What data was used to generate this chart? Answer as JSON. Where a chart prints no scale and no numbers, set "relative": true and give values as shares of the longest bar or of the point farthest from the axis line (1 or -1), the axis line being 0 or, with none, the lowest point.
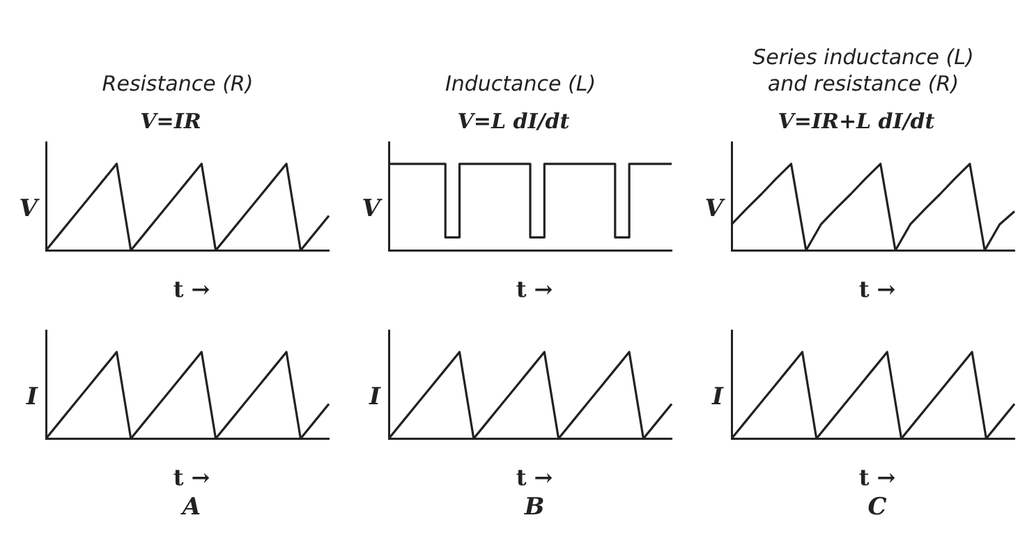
{
  "chart_data": [
    {
      "type": "line",
      "relative": true,
      "title": "Resistance (R)",
      "subtitle": "V=IR",
      "xlabel": "t →",
      "ylabel": "V",
      "color": "#222222",
      "categories": [
        null,
        null,
        null,
        null,
        null,
        null,
        null,
        null,
        null,
        null,
        null,
        null,
        null,
        null,
        null,
        null,
        null,
        null,
        null,
        null,
        null
      ],
      "values": [
        0,
        0.2,
        0.4,
        0.6,
        0.8,
        1,
        0,
        0.2,
        0.4,
        0.6,
        0.8,
        1,
        0,
        0.2,
        0.4,
        0.6,
        0.8,
        1,
        0,
        0.2,
        0.4
      ]
    },
    {
      "type": "step",
      "relative": true,
      "title": "Inductance (L)",
      "subtitle": "V=L dI/dt",
      "xlabel": "t →",
      "ylabel": "V",
      "color": "#222222",
      "categories": [
        null,
        null,
        null,
        null,
        null,
        null,
        null,
        null,
        null,
        null,
        null,
        null,
        null,
        null,
        null,
        null,
        null,
        null,
        null,
        null,
        null
      ],
      "values": [
        1,
        1,
        1,
        1,
        1,
        0.15,
        1,
        1,
        1,
        1,
        1,
        0.15,
        1,
        1,
        1,
        1,
        1,
        0.15,
        1,
        1,
        1
      ]
    },
    {
      "type": "line",
      "relative": true,
      "title": "Series inductance (L) and resistance (R)",
      "subtitle": "V=IR+L dI/dt",
      "xlabel": "t →",
      "ylabel": "V",
      "color": "#222222",
      "categories": [
        null,
        null,
        null,
        null,
        null,
        null,
        null,
        null,
        null,
        null,
        null,
        null,
        null,
        null,
        null,
        null,
        null,
        null,
        null,
        null
      ],
      "values": [
        0.3,
        0.48,
        0.65,
        0.83,
        1,
        0,
        0.3,
        0.48,
        0.65,
        0.83,
        1,
        0,
        0.3,
        0.48,
        0.65,
        0.83,
        1,
        0,
        0.3,
        0.45
      ]
    },
    {
      "type": "line",
      "relative": true,
      "xlabel": "t →",
      "ylabel": "I",
      "annotations": [
        "A"
      ],
      "color": "#222222",
      "categories": [
        null,
        null,
        null,
        null,
        null,
        null,
        null,
        null,
        null,
        null,
        null,
        null,
        null,
        null,
        null,
        null,
        null,
        null,
        null,
        null,
        null
      ],
      "values": [
        0,
        0.2,
        0.4,
        0.6,
        0.8,
        1,
        0,
        0.2,
        0.4,
        0.6,
        0.8,
        1,
        0,
        0.2,
        0.4,
        0.6,
        0.8,
        1,
        0,
        0.2,
        0.4
      ]
    },
    {
      "type": "line",
      "relative": true,
      "xlabel": "t →",
      "ylabel": "I",
      "annotations": [
        "B"
      ],
      "color": "#222222",
      "categories": [
        null,
        null,
        null,
        null,
        null,
        null,
        null,
        null,
        null,
        null,
        null,
        null,
        null,
        null,
        null,
        null,
        null,
        null,
        null,
        null,
        null
      ],
      "values": [
        0,
        0.2,
        0.4,
        0.6,
        0.8,
        1,
        0,
        0.2,
        0.4,
        0.6,
        0.8,
        1,
        0,
        0.2,
        0.4,
        0.6,
        0.8,
        1,
        0,
        0.2,
        0.4
      ]
    },
    {
      "type": "line",
      "relative": true,
      "xlabel": "t →",
      "ylabel": "I",
      "annotations": [
        "C"
      ],
      "color": "#222222",
      "categories": [
        null,
        null,
        null,
        null,
        null,
        null,
        null,
        null,
        null,
        null,
        null,
        null,
        null,
        null,
        null,
        null,
        null,
        null,
        null,
        null,
        null
      ],
      "values": [
        0,
        0.2,
        0.4,
        0.6,
        0.8,
        1,
        0,
        0.2,
        0.4,
        0.6,
        0.8,
        1,
        0,
        0.2,
        0.4,
        0.6,
        0.8,
        1,
        0,
        0.2,
        0.4
      ]
    }
  ]
}
